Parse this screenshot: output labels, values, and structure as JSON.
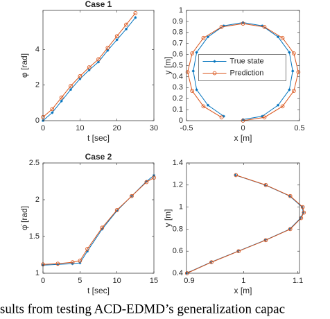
{
  "chart_data": [
    {
      "type": "line",
      "title": "Case 1",
      "xlabel": "t [sec]",
      "ylabel": "φ [rad]",
      "xlim": [
        0,
        30
      ],
      "xticks": [
        0,
        10,
        20,
        30
      ],
      "ylim": [
        0,
        6.2
      ],
      "yticks": [
        0,
        2,
        4
      ],
      "series": [
        {
          "color": "#0072bd",
          "marker": "star",
          "x": [
            0,
            2.5,
            5,
            7.5,
            10,
            12.5,
            15,
            17.5,
            20,
            22.5,
            25
          ],
          "values": [
            0,
            0.45,
            1.1,
            1.75,
            2.35,
            2.85,
            3.3,
            3.95,
            4.55,
            5.15,
            5.8
          ]
        },
        {
          "color": "#d95319",
          "marker": "circle",
          "x": [
            0,
            2.5,
            5,
            7.5,
            10,
            12.5,
            15,
            17.5,
            20,
            22.5,
            25
          ],
          "values": [
            0.2,
            0.65,
            1.3,
            1.95,
            2.5,
            3.0,
            3.45,
            4.1,
            4.75,
            5.4,
            6.05
          ]
        }
      ]
    },
    {
      "type": "line",
      "xlabel": "x [m]",
      "ylabel": "y [m]",
      "xlim": [
        -0.5,
        0.5
      ],
      "xticks": [
        -0.5,
        0,
        0.5
      ],
      "ylim": [
        0,
        1
      ],
      "yticks": [
        0,
        0.1,
        0.2,
        0.3,
        0.4,
        0.5,
        0.6,
        0.7,
        0.8,
        0.9,
        1
      ],
      "legend": "center",
      "series": [
        {
          "name": "True state",
          "color": "#0072bd",
          "marker": "star",
          "x": [
            0,
            0.17,
            0.31,
            0.41,
            0.44,
            0.41,
            0.31,
            0.17,
            0,
            -0.17,
            -0.31,
            -0.41,
            -0.44,
            -0.41,
            -0.31,
            -0.17
          ],
          "values": [
            0.01,
            0.04,
            0.14,
            0.28,
            0.45,
            0.62,
            0.76,
            0.86,
            0.89,
            0.86,
            0.76,
            0.62,
            0.45,
            0.28,
            0.14,
            0.04
          ]
        },
        {
          "name": "Prediction",
          "color": "#d95319",
          "marker": "circle",
          "x": [
            0,
            0.19,
            0.35,
            0.45,
            0.49,
            0.45,
            0.35,
            0.19,
            0,
            -0.19,
            -0.35,
            -0.45,
            -0.49,
            -0.45,
            -0.35,
            -0.19
          ],
          "values": [
            0,
            0.03,
            0.13,
            0.27,
            0.44,
            0.61,
            0.75,
            0.85,
            0.88,
            0.85,
            0.75,
            0.61,
            0.44,
            0.27,
            0.13,
            0.03
          ]
        }
      ]
    },
    {
      "type": "line",
      "title": "Case 2",
      "xlabel": "t [sec]",
      "ylabel": "φ̇ [rad]",
      "xlim": [
        0,
        15
      ],
      "xticks": [
        0,
        5,
        10,
        15
      ],
      "ylim": [
        1,
        2.5
      ],
      "yticks": [
        1,
        1.5,
        2,
        2.5
      ],
      "series": [
        {
          "color": "#0072bd",
          "marker": "star",
          "x": [
            0,
            2,
            4,
            5,
            6,
            8,
            10,
            12,
            14,
            15
          ],
          "values": [
            1.11,
            1.12,
            1.13,
            1.14,
            1.3,
            1.6,
            1.85,
            2.05,
            2.25,
            2.33
          ]
        },
        {
          "color": "#d95319",
          "marker": "circle",
          "x": [
            0,
            2,
            4,
            5,
            6,
            8,
            10,
            12,
            14,
            15
          ],
          "values": [
            1.12,
            1.13,
            1.15,
            1.17,
            1.33,
            1.62,
            1.86,
            2.05,
            2.24,
            2.3
          ]
        }
      ]
    },
    {
      "type": "line",
      "xlabel": "x [m]",
      "ylabel": "y [m]",
      "xlim": [
        0.895,
        1.103
      ],
      "xticks": [
        0.9,
        1,
        1.1
      ],
      "ylim": [
        0.4,
        1.4
      ],
      "yticks": [
        0.4,
        0.6,
        0.8,
        1,
        1.2,
        1.4
      ],
      "series": [
        {
          "color": "#0072bd",
          "marker": "star",
          "x": [
            0.985,
            1.04,
            1.085,
            1.108,
            1.11,
            1.105,
            1.085,
            1.04,
            0.99,
            0.94,
            0.895
          ],
          "values": [
            1.29,
            1.2,
            1.1,
            1.0,
            0.95,
            0.9,
            0.8,
            0.7,
            0.6,
            0.5,
            0.4
          ]
        },
        {
          "color": "#d95319",
          "marker": "circle",
          "x": [
            0.986,
            1.041,
            1.086,
            1.109,
            1.111,
            1.106,
            1.086,
            1.041,
            0.991,
            0.941,
            0.896
          ],
          "values": [
            1.29,
            1.2,
            1.1,
            1.0,
            0.95,
            0.9,
            0.8,
            0.7,
            0.6,
            0.5,
            0.4
          ]
        }
      ]
    }
  ],
  "caption": "sults from testing ACD-EDMD’s generalization capac"
}
